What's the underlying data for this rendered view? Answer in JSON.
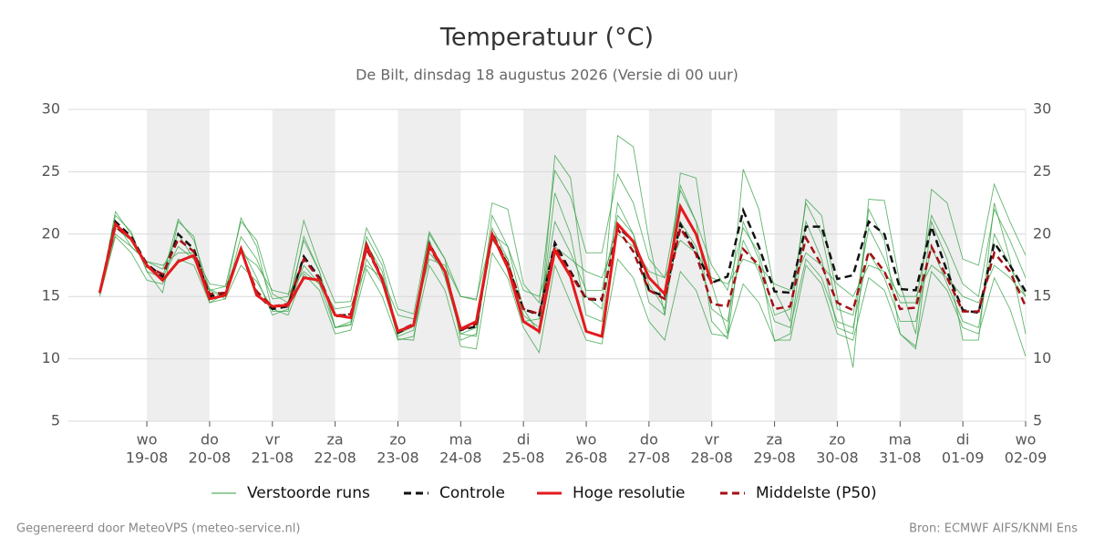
{
  "chart_data": {
    "type": "line",
    "title": "Temperatuur (°C)",
    "subtitle": "De Bilt, dinsdag 18 augustus 2026 (Versie di 00 uur)",
    "categories": [
      null,
      null,
      null,
      "19-08",
      null,
      null,
      null,
      "20-08",
      null,
      null,
      null,
      "21-08",
      null,
      null,
      null,
      "22-08",
      null,
      null,
      null,
      "23-08",
      null,
      null,
      null,
      "24-08",
      null,
      null,
      null,
      "25-08",
      null,
      null,
      null,
      "26-08",
      null,
      null,
      null,
      "27-08",
      null,
      null,
      null,
      "28-08",
      null,
      null,
      null,
      "29-08",
      null,
      null,
      null,
      "30-08",
      null,
      null,
      null,
      "31-08",
      null,
      null,
      null,
      "01-09",
      null,
      null,
      null,
      "02-09"
    ],
    "category_weekdays": [
      null,
      null,
      null,
      "wo",
      null,
      null,
      null,
      "do",
      null,
      null,
      null,
      "vr",
      null,
      null,
      null,
      "za",
      null,
      null,
      null,
      "zo",
      null,
      null,
      null,
      "ma",
      null,
      null,
      null,
      "di",
      null,
      null,
      null,
      "wo",
      null,
      null,
      null,
      "do",
      null,
      null,
      null,
      "vr",
      null,
      null,
      null,
      "za",
      null,
      null,
      null,
      "zo",
      null,
      null,
      null,
      "ma",
      null,
      null,
      null,
      "di",
      null,
      null,
      null,
      "wo"
    ],
    "ylim": [
      5,
      30
    ],
    "yticks": [
      5,
      10,
      15,
      20,
      25,
      30
    ],
    "grid": true,
    "ensemble": {
      "name": "Verstoorde runs",
      "color": "#2e9e3e",
      "members": [
        [
          15.2,
          21.8,
          20.0,
          17.0,
          16.5,
          21.2,
          19.5,
          15.5,
          15.8,
          21.0,
          19.5,
          15.2,
          14.5,
          19.5,
          17.0,
          12.5,
          13.0,
          19.8,
          17.5,
          12.0,
          12.6,
          20.0,
          18.0,
          11.5,
          12.0,
          21.5,
          19.0,
          14.0,
          12.0,
          26.3,
          24.5,
          15.0,
          14.0,
          27.9,
          27.0,
          19.5,
          13.5,
          24.9,
          24.5,
          16.0,
          12.0,
          25.2,
          22.0,
          15.5,
          13.0,
          22.8,
          21.5,
          15.0,
          9.3,
          22.8,
          22.7,
          16.0,
          12.0,
          23.6,
          22.5,
          18.0,
          17.5,
          24.0,
          21.0,
          18.3
        ],
        [
          15.0,
          19.8,
          18.5,
          16.3,
          16.0,
          18.0,
          17.5,
          14.5,
          14.8,
          17.5,
          16.2,
          14.0,
          13.5,
          16.8,
          15.5,
          12.0,
          12.3,
          17.2,
          15.0,
          11.5,
          11.8,
          17.5,
          15.5,
          11.0,
          10.8,
          18.5,
          16.5,
          12.5,
          10.5,
          17.5,
          14.5,
          11.5,
          11.2,
          18.0,
          16.5,
          13.0,
          11.5,
          17.0,
          15.5,
          12.0,
          11.8,
          16.0,
          14.5,
          11.5,
          11.5,
          17.5,
          16.0,
          12.0,
          11.5,
          16.5,
          15.5,
          12.0,
          11.0,
          17.0,
          15.5,
          12.5,
          12.0,
          16.5,
          14.0,
          10.2
        ],
        [
          15.4,
          21.0,
          19.0,
          17.8,
          17.2,
          20.0,
          18.0,
          15.6,
          15.0,
          19.8,
          18.0,
          14.8,
          15.0,
          21.1,
          17.5,
          14.5,
          14.6,
          20.5,
          18.0,
          14.0,
          13.6,
          20.2,
          18.0,
          15.0,
          14.7,
          22.5,
          22.0,
          16.0,
          14.5,
          25.1,
          23.0,
          18.5,
          18.5,
          24.8,
          22.5,
          18.0,
          16.5,
          23.5,
          21.0,
          17.5,
          15.5,
          20.5,
          18.5,
          13.5,
          14.0,
          22.5,
          20.0,
          14.0,
          13.5,
          20.5,
          18.0,
          14.5,
          14.5,
          21.5,
          19.0,
          16.0,
          15.0,
          22.0,
          19.5,
          16.5
        ],
        [
          15.3,
          20.5,
          19.5,
          17.5,
          16.5,
          19.0,
          18.0,
          15.5,
          14.8,
          19.0,
          16.5,
          13.5,
          14.0,
          17.5,
          16.0,
          12.5,
          12.7,
          18.0,
          16.0,
          11.8,
          12.3,
          18.5,
          17.0,
          12.0,
          12.5,
          19.5,
          18.0,
          13.0,
          13.2,
          21.0,
          18.5,
          15.5,
          15.5,
          21.5,
          20.0,
          16.0,
          14.0,
          21.0,
          19.0,
          14.0,
          13.0,
          19.5,
          17.0,
          13.0,
          12.5,
          18.0,
          16.5,
          13.0,
          12.5,
          18.5,
          16.5,
          13.0,
          13.0,
          19.0,
          16.0,
          13.0,
          12.5,
          20.0,
          17.5,
          15.0
        ],
        [
          15.2,
          21.5,
          20.2,
          17.0,
          15.3,
          21.0,
          19.8,
          14.5,
          15.2,
          21.3,
          19.0,
          13.8,
          13.8,
          19.8,
          17.0,
          12.5,
          12.8,
          19.2,
          17.0,
          11.6,
          11.5,
          19.5,
          16.5,
          12.0,
          11.8,
          20.5,
          18.0,
          13.5,
          12.5,
          23.3,
          20.0,
          13.5,
          13.0,
          22.5,
          20.0,
          14.5,
          13.5,
          23.9,
          21.0,
          13.0,
          11.6,
          21.0,
          18.0,
          11.4,
          12.0,
          21.0,
          18.0,
          12.5,
          12.0,
          22.0,
          19.5,
          12.0,
          10.8,
          21.0,
          18.0,
          11.5,
          11.5,
          22.5,
          18.0,
          12.0
        ],
        [
          15.4,
          20.0,
          19.0,
          17.8,
          17.5,
          18.5,
          18.5,
          16.0,
          15.8,
          18.5,
          17.5,
          15.5,
          15.2,
          17.0,
          16.0,
          14.0,
          14.2,
          17.5,
          16.5,
          13.5,
          13.2,
          18.0,
          17.5,
          15.0,
          14.8,
          20.0,
          19.0,
          15.5,
          15.0,
          19.0,
          18.0,
          17.0,
          16.5,
          20.0,
          19.0,
          17.0,
          16.5,
          19.5,
          18.5,
          16.5,
          16.0,
          18.0,
          17.5,
          16.0,
          15.5,
          18.5,
          17.5,
          16.0,
          15.0,
          17.5,
          17.0,
          15.0,
          15.0,
          17.5,
          16.5,
          15.0,
          14.5,
          17.5,
          16.5,
          15.0
        ]
      ]
    },
    "series": [
      {
        "name": "Controle",
        "color": "#111111",
        "dash": true,
        "values": [
          15.3,
          21.0,
          19.8,
          17.6,
          16.6,
          20.0,
          18.8,
          15.0,
          15.3,
          18.8,
          15.2,
          14.0,
          14.2,
          18.2,
          16.5,
          13.5,
          13.5,
          19.2,
          16.4,
          12.1,
          12.7,
          19.2,
          17.0,
          12.3,
          12.6,
          20.1,
          17.5,
          14.0,
          13.5,
          19.3,
          17.0,
          14.8,
          14.7,
          20.6,
          19.4,
          15.5,
          15.0,
          20.8,
          18.5,
          16.1,
          16.6,
          21.9,
          19.0,
          15.4,
          15.3,
          20.6,
          20.6,
          16.4,
          16.7,
          21.0,
          20.0,
          15.6,
          15.5,
          20.6,
          17.0,
          13.9,
          13.7,
          19.3,
          17.5,
          15.4
        ]
      },
      {
        "name": "Hoge resolutie",
        "color": "#e31a1c",
        "dash": false,
        "values": [
          15.3,
          20.8,
          19.6,
          17.5,
          16.3,
          17.8,
          18.3,
          14.8,
          15.1,
          18.8,
          15.1,
          14.2,
          14.3,
          16.5,
          16.3,
          13.5,
          13.3,
          19.1,
          16.3,
          12.2,
          12.7,
          19.1,
          17.0,
          12.4,
          13.0,
          20.0,
          17.3,
          13.0,
          12.2,
          18.7,
          16.6,
          12.2,
          11.8,
          20.8,
          19.4,
          16.5,
          15.2,
          22.2,
          20.0,
          16.0,
          null,
          null,
          null,
          null,
          null,
          null,
          null,
          null,
          null,
          null,
          null,
          null,
          null,
          null,
          null,
          null,
          null,
          null,
          null,
          null
        ]
      },
      {
        "name": "Middelste (P50)",
        "color": "#a50f15",
        "dash": true,
        "values": [
          15.3,
          20.6,
          19.6,
          17.4,
          16.8,
          19.6,
          18.6,
          15.2,
          15.3,
          18.7,
          15.4,
          14.2,
          14.4,
          18.0,
          16.4,
          13.4,
          13.6,
          18.8,
          16.4,
          12.2,
          12.8,
          18.9,
          17.0,
          12.3,
          12.8,
          19.8,
          17.6,
          14.0,
          13.6,
          19.0,
          16.8,
          14.8,
          14.8,
          20.4,
          18.6,
          15.5,
          14.8,
          20.5,
          18.4,
          14.4,
          14.2,
          18.8,
          17.5,
          14.0,
          14.2,
          19.7,
          17.5,
          14.5,
          13.9,
          18.6,
          17.0,
          14.0,
          14.1,
          19.0,
          16.5,
          13.8,
          13.8,
          18.5,
          17.0,
          14.2
        ]
      }
    ],
    "footer_left": "Gegenereerd door MeteoVPS (meteo-service.nl)",
    "footer_right": "Bron: ECMWF AIFS/KNMI Ens"
  }
}
